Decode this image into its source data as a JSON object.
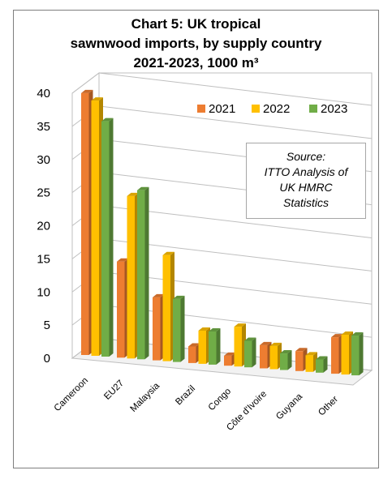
{
  "chart_data": {
    "type": "bar",
    "title_lines": [
      "Chart 5: UK tropical",
      "sawnwood imports, by supply country",
      "2021-2023, 1000 m³"
    ],
    "categories": [
      "Cameroon",
      "EU27",
      "Malaysia",
      "Brazil",
      "Congo",
      "Côte d'Ivoire",
      "Guyana",
      "Other"
    ],
    "series": [
      {
        "name": "2021",
        "color": "#ED7D31",
        "values": [
          39.5,
          14.5,
          9.5,
          2.5,
          1.5,
          3.5,
          3.0,
          5.5
        ]
      },
      {
        "name": "2022",
        "color": "#FFC000",
        "values": [
          38.5,
          24.5,
          16.0,
          5.0,
          6.0,
          3.5,
          2.5,
          6.0
        ]
      },
      {
        "name": "2023",
        "color": "#70AD47",
        "values": [
          35.5,
          25.5,
          9.5,
          5.0,
          4.0,
          2.5,
          2.0,
          6.0
        ]
      }
    ],
    "yticks": [
      0,
      5,
      10,
      15,
      20,
      25,
      30,
      35,
      40
    ],
    "ylim": [
      0,
      40
    ],
    "grid": true,
    "legend": "top-right",
    "annotation_lines": [
      "Source:",
      "ITTO Analysis of",
      "UK HMRC",
      "Statistics"
    ]
  }
}
